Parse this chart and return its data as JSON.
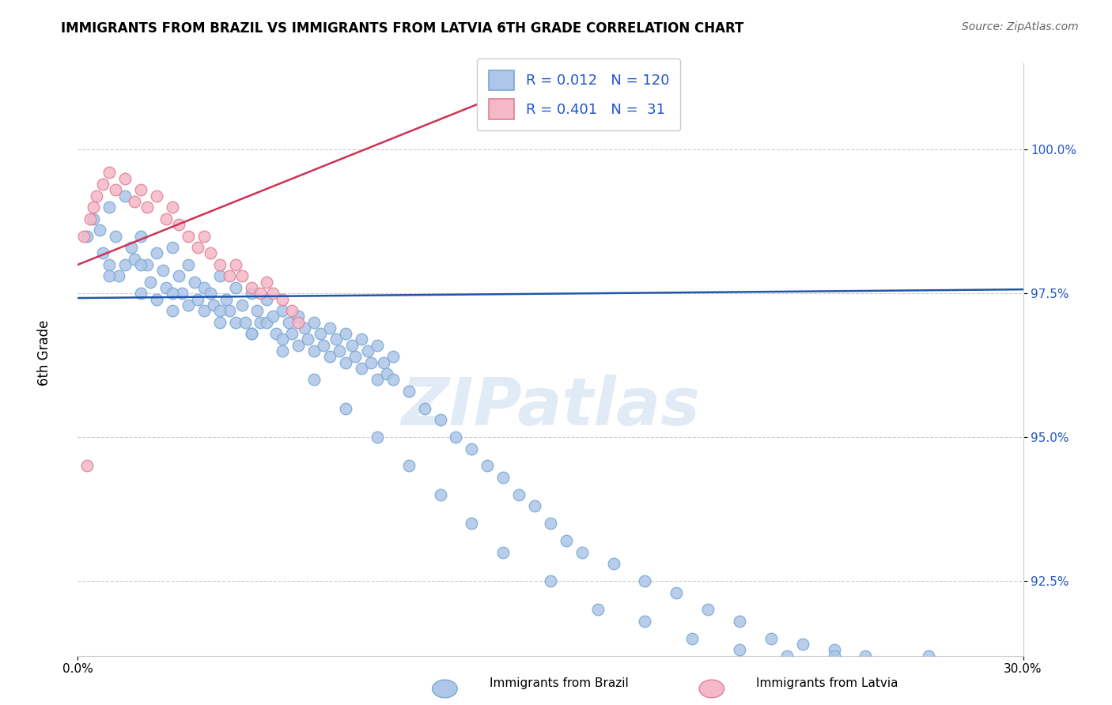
{
  "title": "IMMIGRANTS FROM BRAZIL VS IMMIGRANTS FROM LATVIA 6TH GRADE CORRELATION CHART",
  "source": "Source: ZipAtlas.com",
  "xlabel_brazil": "Immigrants from Brazil",
  "xlabel_latvia": "Immigrants from Latvia",
  "ylabel": "6th Grade",
  "xlim": [
    0.0,
    30.0
  ],
  "ylim": [
    91.2,
    101.5
  ],
  "yticks": [
    92.5,
    95.0,
    97.5,
    100.0
  ],
  "ytick_labels": [
    "92.5%",
    "95.0%",
    "97.5%",
    "100.0%"
  ],
  "xticks": [
    0.0,
    30.0
  ],
  "xtick_labels": [
    "0.0%",
    "30.0%"
  ],
  "brazil_color": "#aec6e8",
  "latvia_color": "#f5b8c8",
  "brazil_edge": "#7aaad4",
  "latvia_edge": "#e0809a",
  "trend_brazil_color": "#2255aa",
  "trend_latvia_color": "#cc3355",
  "legend_brazil_R": "R = 0.012",
  "legend_brazil_N": "N = 120",
  "legend_latvia_R": "R = 0.401",
  "legend_latvia_N": "N =  31",
  "watermark": "ZIPatlas",
  "brazil_trend_slope": 0.005,
  "brazil_trend_intercept": 97.42,
  "latvia_trend_x0": 0.0,
  "latvia_trend_y0": 98.0,
  "latvia_trend_x1": 10.0,
  "latvia_trend_y1": 100.2,
  "brazil_x": [
    0.3,
    0.5,
    0.7,
    0.8,
    1.0,
    1.0,
    1.2,
    1.3,
    1.5,
    1.5,
    1.7,
    1.8,
    2.0,
    2.0,
    2.2,
    2.3,
    2.5,
    2.5,
    2.7,
    2.8,
    3.0,
    3.0,
    3.2,
    3.3,
    3.5,
    3.5,
    3.7,
    3.8,
    4.0,
    4.0,
    4.2,
    4.3,
    4.5,
    4.5,
    4.7,
    4.8,
    5.0,
    5.0,
    5.2,
    5.3,
    5.5,
    5.5,
    5.7,
    5.8,
    6.0,
    6.0,
    6.2,
    6.3,
    6.5,
    6.5,
    6.7,
    6.8,
    7.0,
    7.0,
    7.2,
    7.3,
    7.5,
    7.5,
    7.7,
    7.8,
    8.0,
    8.0,
    8.2,
    8.3,
    8.5,
    8.5,
    8.7,
    8.8,
    9.0,
    9.0,
    9.2,
    9.3,
    9.5,
    9.5,
    9.7,
    9.8,
    10.0,
    10.0,
    10.5,
    11.0,
    11.5,
    12.0,
    12.5,
    13.0,
    13.5,
    14.0,
    14.5,
    15.0,
    15.5,
    16.0,
    17.0,
    18.0,
    19.0,
    20.0,
    21.0,
    22.0,
    23.0,
    24.0,
    25.0,
    27.0,
    1.0,
    2.0,
    3.0,
    4.5,
    5.5,
    6.5,
    7.5,
    8.5,
    9.5,
    10.5,
    11.5,
    12.5,
    13.5,
    15.0,
    16.5,
    18.0,
    19.5,
    21.0,
    22.5,
    24.0
  ],
  "brazil_y": [
    98.5,
    98.8,
    98.6,
    98.2,
    99.0,
    98.0,
    98.5,
    97.8,
    99.2,
    98.0,
    98.3,
    98.1,
    98.5,
    97.5,
    98.0,
    97.7,
    98.2,
    97.4,
    97.9,
    97.6,
    98.3,
    97.2,
    97.8,
    97.5,
    98.0,
    97.3,
    97.7,
    97.4,
    97.6,
    97.2,
    97.5,
    97.3,
    97.8,
    97.0,
    97.4,
    97.2,
    97.6,
    97.0,
    97.3,
    97.0,
    97.5,
    96.8,
    97.2,
    97.0,
    97.4,
    97.0,
    97.1,
    96.8,
    97.2,
    96.7,
    97.0,
    96.8,
    97.1,
    96.6,
    96.9,
    96.7,
    97.0,
    96.5,
    96.8,
    96.6,
    96.9,
    96.4,
    96.7,
    96.5,
    96.8,
    96.3,
    96.6,
    96.4,
    96.7,
    96.2,
    96.5,
    96.3,
    96.6,
    96.0,
    96.3,
    96.1,
    96.4,
    96.0,
    95.8,
    95.5,
    95.3,
    95.0,
    94.8,
    94.5,
    94.3,
    94.0,
    93.8,
    93.5,
    93.2,
    93.0,
    92.8,
    92.5,
    92.3,
    92.0,
    91.8,
    91.5,
    91.4,
    91.3,
    91.2,
    91.2,
    97.8,
    98.0,
    97.5,
    97.2,
    96.8,
    96.5,
    96.0,
    95.5,
    95.0,
    94.5,
    94.0,
    93.5,
    93.0,
    92.5,
    92.0,
    91.8,
    91.5,
    91.3,
    91.2,
    91.2
  ],
  "latvia_x": [
    0.2,
    0.4,
    0.5,
    0.6,
    0.8,
    1.0,
    1.2,
    1.5,
    1.8,
    2.0,
    2.2,
    2.5,
    2.8,
    3.0,
    3.2,
    3.5,
    3.8,
    4.0,
    4.2,
    4.5,
    4.8,
    5.0,
    5.2,
    5.5,
    5.8,
    6.0,
    6.2,
    6.5,
    6.8,
    7.0,
    0.3
  ],
  "latvia_y": [
    98.5,
    98.8,
    99.0,
    99.2,
    99.4,
    99.6,
    99.3,
    99.5,
    99.1,
    99.3,
    99.0,
    99.2,
    98.8,
    99.0,
    98.7,
    98.5,
    98.3,
    98.5,
    98.2,
    98.0,
    97.8,
    98.0,
    97.8,
    97.6,
    97.5,
    97.7,
    97.5,
    97.4,
    97.2,
    97.0,
    94.5
  ]
}
